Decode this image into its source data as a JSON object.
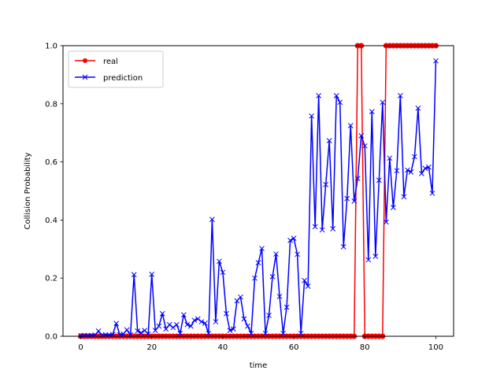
{
  "chart_data": {
    "type": "line",
    "title": "",
    "xlabel": "time",
    "ylabel": "Collision Probability",
    "xlim": [
      -5,
      105
    ],
    "ylim": [
      0.0,
      1.0
    ],
    "xticks": [
      0,
      20,
      40,
      60,
      80,
      100
    ],
    "yticks": [
      0.0,
      0.2,
      0.4,
      0.6,
      0.8,
      1.0
    ],
    "xtick_labels": [
      "0",
      "20",
      "40",
      "60",
      "80",
      "100"
    ],
    "ytick_labels": [
      "0.0",
      "0.2",
      "0.4",
      "0.6",
      "0.8",
      "1.0"
    ],
    "grid": false,
    "legend_position": "top-left",
    "series": [
      {
        "name": "real",
        "color": "#ff0000",
        "marker": "circle",
        "x": [
          0,
          1,
          2,
          3,
          4,
          5,
          6,
          7,
          8,
          9,
          10,
          11,
          12,
          13,
          14,
          15,
          16,
          17,
          18,
          19,
          20,
          21,
          22,
          23,
          24,
          25,
          26,
          27,
          28,
          29,
          30,
          31,
          32,
          33,
          34,
          35,
          36,
          37,
          38,
          39,
          40,
          41,
          42,
          43,
          44,
          45,
          46,
          47,
          48,
          49,
          50,
          51,
          52,
          53,
          54,
          55,
          56,
          57,
          58,
          59,
          60,
          61,
          62,
          63,
          64,
          65,
          66,
          67,
          68,
          69,
          70,
          71,
          72,
          73,
          74,
          75,
          76,
          77,
          78,
          79,
          80,
          81,
          82,
          83,
          84,
          85,
          86,
          87,
          88,
          89,
          90,
          91,
          92,
          93,
          94,
          95,
          96,
          97,
          98,
          99,
          100
        ],
        "y": [
          0,
          0,
          0,
          0,
          0,
          0,
          0,
          0,
          0,
          0,
          0,
          0,
          0,
          0,
          0,
          0,
          0,
          0,
          0,
          0,
          0,
          0,
          0,
          0,
          0,
          0,
          0,
          0,
          0,
          0,
          0,
          0,
          0,
          0,
          0,
          0,
          0,
          0,
          0,
          0,
          0,
          0,
          0,
          0,
          0,
          0,
          0,
          0,
          0,
          0,
          0,
          0,
          0,
          0,
          0,
          0,
          0,
          0,
          0,
          0,
          0,
          0,
          0,
          0,
          0,
          0,
          0,
          0,
          0,
          0,
          0,
          0,
          0,
          0,
          0,
          0,
          0,
          0,
          1,
          1,
          0,
          0,
          0,
          0,
          0,
          0,
          1,
          1,
          1,
          1,
          1,
          1,
          1,
          1,
          1,
          1,
          1,
          1,
          1,
          1,
          1
        ]
      },
      {
        "name": "prediction",
        "color": "#0000ff",
        "marker": "x",
        "x": [
          0,
          1,
          2,
          3,
          4,
          5,
          6,
          7,
          8,
          9,
          10,
          11,
          12,
          13,
          14,
          15,
          16,
          17,
          18,
          19,
          20,
          21,
          22,
          23,
          24,
          25,
          26,
          27,
          28,
          29,
          30,
          31,
          32,
          33,
          34,
          35,
          36,
          37,
          38,
          39,
          40,
          41,
          42,
          43,
          44,
          45,
          46,
          47,
          48,
          49,
          50,
          51,
          52,
          53,
          54,
          55,
          56,
          57,
          58,
          59,
          60,
          61,
          62,
          63,
          64,
          65,
          66,
          67,
          68,
          69,
          70,
          71,
          72,
          73,
          74,
          75,
          76,
          77,
          78,
          79,
          80,
          81,
          82,
          83,
          84,
          85,
          86,
          87,
          88,
          89,
          90,
          91,
          92,
          93,
          94,
          95,
          96,
          97,
          98,
          99,
          100
        ],
        "y": [
          0.002,
          0.003,
          0.002,
          0.003,
          0.004,
          0.018,
          0.003,
          0.005,
          0.004,
          0.006,
          0.044,
          0.005,
          0.008,
          0.022,
          0.005,
          0.212,
          0.018,
          0.012,
          0.02,
          0.008,
          0.213,
          0.02,
          0.035,
          0.078,
          0.025,
          0.04,
          0.03,
          0.04,
          0.01,
          0.074,
          0.04,
          0.035,
          0.055,
          0.06,
          0.05,
          0.045,
          0.01,
          0.402,
          0.05,
          0.258,
          0.22,
          0.078,
          0.02,
          0.025,
          0.122,
          0.135,
          0.06,
          0.035,
          0.01,
          0.2,
          0.253,
          0.302,
          0.01,
          0.072,
          0.205,
          0.283,
          0.137,
          0.01,
          0.1,
          0.33,
          0.337,
          0.282,
          0.01,
          0.192,
          0.172,
          0.758,
          0.377,
          0.828,
          0.366,
          0.522,
          0.673,
          0.37,
          0.828,
          0.805,
          0.308,
          0.474,
          0.725,
          0.465,
          0.543,
          0.69,
          0.655,
          0.263,
          0.773,
          0.275,
          0.537,
          0.805,
          0.393,
          0.613,
          0.443,
          0.57,
          0.828,
          0.48,
          0.572,
          0.565,
          0.618,
          0.785,
          0.56,
          0.578,
          0.582,
          0.492,
          0.948
        ]
      }
    ]
  }
}
